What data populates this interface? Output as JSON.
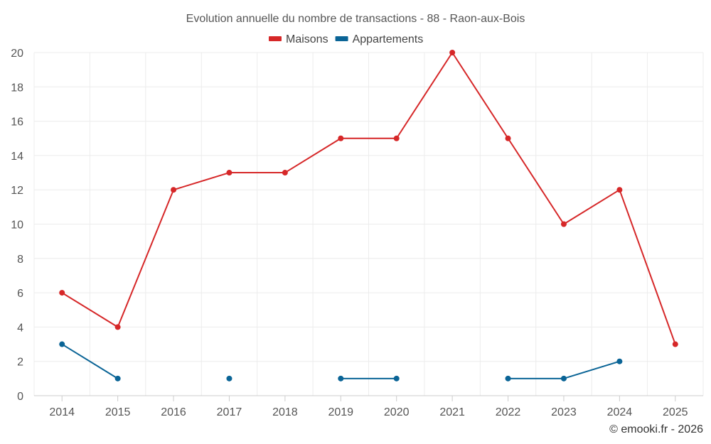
{
  "chart_data": {
    "type": "line",
    "title": "Evolution annuelle du nombre de transactions - 88 - Raon-aux-Bois",
    "categories": [
      "2014",
      "2015",
      "2016",
      "2017",
      "2018",
      "2019",
      "2020",
      "2021",
      "2022",
      "2023",
      "2024",
      "2025"
    ],
    "ylim": [
      0,
      20
    ],
    "yticks": [
      0,
      2,
      4,
      6,
      8,
      10,
      12,
      14,
      16,
      18,
      20
    ],
    "grid": true,
    "legend_position": "top-center",
    "series": [
      {
        "name": "Maisons",
        "color": "#d62728",
        "values": [
          6,
          4,
          12,
          13,
          13,
          15,
          15,
          20,
          15,
          10,
          12,
          3
        ]
      },
      {
        "name": "Appartements",
        "color": "#0a6496",
        "values": [
          3,
          1,
          null,
          1,
          null,
          1,
          1,
          null,
          1,
          1,
          2,
          null
        ]
      }
    ]
  },
  "credit": "© emooki.fr - 2026"
}
